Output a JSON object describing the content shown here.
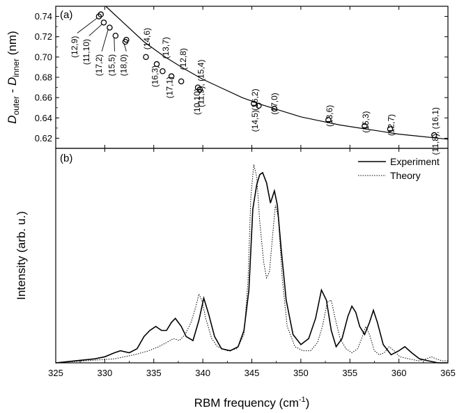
{
  "chart_data": [
    {
      "type": "scatter",
      "panel_label": "(a)",
      "ylabel_parts": [
        {
          "text": "D",
          "style": "italic"
        },
        {
          "text": "outer",
          "style": "sub"
        },
        {
          "text": " - ",
          "style": "normal"
        },
        {
          "text": "D",
          "style": "italic"
        },
        {
          "text": "inner",
          "style": "sub"
        },
        {
          "text": " (nm)",
          "style": "normal"
        }
      ],
      "xlim": [
        325,
        365
      ],
      "ylim": [
        0.61,
        0.75
      ],
      "yticks": [
        0.62,
        0.64,
        0.66,
        0.68,
        0.7,
        0.72,
        0.74
      ],
      "ytick_labels": [
        "0.62",
        "0.64",
        "0.66",
        "0.68",
        "0.70",
        "0.72",
        "0.74"
      ],
      "fit_curve": {
        "x": [
          330.1,
          332,
          334,
          336,
          338,
          340,
          342,
          344,
          346,
          348,
          350,
          352,
          354,
          356,
          358,
          360,
          362,
          365
        ],
        "y": [
          0.75,
          0.733,
          0.715,
          0.701,
          0.689,
          0.678,
          0.669,
          0.66,
          0.653,
          0.647,
          0.641,
          0.637,
          0.633,
          0.63,
          0.627,
          0.624,
          0.622,
          0.619
        ]
      },
      "points": [
        {
          "x": 329.4,
          "y": 0.74
        },
        {
          "x": 329.6,
          "y": 0.742
        },
        {
          "x": 329.9,
          "y": 0.734
        },
        {
          "x": 330.5,
          "y": 0.729
        },
        {
          "x": 331.1,
          "y": 0.721
        },
        {
          "x": 332.1,
          "y": 0.715
        },
        {
          "x": 332.2,
          "y": 0.717
        },
        {
          "x": 334.2,
          "y": 0.7
        },
        {
          "x": 335.3,
          "y": 0.693
        },
        {
          "x": 335.9,
          "y": 0.686
        },
        {
          "x": 336.8,
          "y": 0.681
        },
        {
          "x": 337.8,
          "y": 0.676
        },
        {
          "x": 339.5,
          "y": 0.67
        },
        {
          "x": 339.7,
          "y": 0.668
        },
        {
          "x": 345.2,
          "y": 0.654
        },
        {
          "x": 345.7,
          "y": 0.652
        },
        {
          "x": 347.3,
          "y": 0.649
        },
        {
          "x": 352.8,
          "y": 0.638
        },
        {
          "x": 356.5,
          "y": 0.632
        },
        {
          "x": 359.1,
          "y": 0.629
        },
        {
          "x": 363.6,
          "y": 0.623
        }
      ],
      "annotations": [
        {
          "text": "(12,9)",
          "x": 327.2,
          "y": 0.71,
          "rotate": -90,
          "leader": {
            "x": 329.4,
            "y": 0.74
          }
        },
        {
          "text": "(11,10)",
          "x": 328.4,
          "y": 0.705,
          "rotate": -90,
          "leader": {
            "x": 329.9,
            "y": 0.734
          }
        },
        {
          "text": "(17,2)",
          "x": 329.7,
          "y": 0.692,
          "rotate": -90,
          "leader": {
            "x": 330.5,
            "y": 0.729
          }
        },
        {
          "text": "(15,5)",
          "x": 331.0,
          "y": 0.692,
          "rotate": -90,
          "leader": {
            "x": 331.1,
            "y": 0.721
          }
        },
        {
          "text": "(18,0)",
          "x": 332.2,
          "y": 0.692,
          "rotate": -90,
          "leader": {
            "x": 332.1,
            "y": 0.715
          }
        },
        {
          "text": "(14,6)",
          "x": 334.6,
          "y": 0.718,
          "rotate": -90
        },
        {
          "text": "(16,3)",
          "x": 335.4,
          "y": 0.681,
          "rotate": -90
        },
        {
          "text": "(13,7)",
          "x": 336.5,
          "y": 0.709,
          "rotate": -90
        },
        {
          "text": "(17,1)",
          "x": 336.9,
          "y": 0.67,
          "rotate": -90
        },
        {
          "text": "(12,8)",
          "x": 338.3,
          "y": 0.698,
          "rotate": -90
        },
        {
          "text": "(10,10)",
          "x": 339.7,
          "y": 0.656,
          "rotate": -90
        },
        {
          "text": "(11,9), (15,4)",
          "x": 340.1,
          "y": 0.674,
          "rotate": -90
        },
        {
          "text": "(16,2)",
          "x": 345.6,
          "y": 0.658,
          "rotate": -90
        },
        {
          "text": "(14,5)",
          "x": 345.6,
          "y": 0.637,
          "rotate": -90
        },
        {
          "text": "(17,0)",
          "x": 347.6,
          "y": 0.654,
          "rotate": -90
        },
        {
          "text": "(13,6)",
          "x": 353.2,
          "y": 0.642,
          "rotate": -90
        },
        {
          "text": "(15,3)",
          "x": 356.9,
          "y": 0.636,
          "rotate": -90
        },
        {
          "text": "(12,7)",
          "x": 359.5,
          "y": 0.633,
          "rotate": -90
        },
        {
          "text": "(11,8), (16,1)",
          "x": 364.0,
          "y": 0.627,
          "rotate": -90
        }
      ]
    },
    {
      "type": "line",
      "panel_label": "(b)",
      "xlabel": "RBM frequency (cm",
      "xlabel_sup": "-1",
      "xlabel_end": ")",
      "ylabel": "Intensity (arb. u.)",
      "xlim": [
        325,
        365
      ],
      "ylim": [
        0,
        1.06
      ],
      "xticks": [
        325,
        330,
        335,
        340,
        345,
        350,
        355,
        360,
        365
      ],
      "xtick_labels": [
        "325",
        "330",
        "335",
        "340",
        "345",
        "350",
        "355",
        "360",
        "365"
      ],
      "legend_position": "top-right",
      "series": [
        {
          "name": "Experiment",
          "line_style": "solid",
          "x": [
            325,
            327,
            329,
            330,
            331,
            331.6,
            332.5,
            333.3,
            334,
            334.6,
            335.2,
            335.8,
            336.3,
            336.8,
            337.2,
            337.8,
            338.3,
            339,
            339.6,
            340.1,
            340.6,
            341.2,
            341.9,
            342.8,
            343.6,
            344.2,
            344.7,
            345.1,
            345.5,
            345.8,
            346.1,
            346.5,
            346.9,
            347.3,
            347.6,
            348,
            348.5,
            349.2,
            350,
            350.8,
            351.5,
            352.1,
            352.6,
            353.1,
            353.6,
            354.2,
            354.8,
            355.2,
            355.6,
            356,
            356.5,
            357,
            357.4,
            357.8,
            358.4,
            359.2,
            360,
            360.6,
            361.3,
            362.1,
            363,
            364,
            365
          ],
          "y": [
            0.0,
            0.01,
            0.02,
            0.03,
            0.05,
            0.06,
            0.05,
            0.07,
            0.13,
            0.16,
            0.18,
            0.16,
            0.16,
            0.2,
            0.22,
            0.18,
            0.13,
            0.11,
            0.21,
            0.32,
            0.24,
            0.13,
            0.07,
            0.06,
            0.08,
            0.16,
            0.36,
            0.76,
            0.88,
            0.93,
            0.94,
            0.89,
            0.79,
            0.85,
            0.78,
            0.56,
            0.31,
            0.14,
            0.09,
            0.12,
            0.22,
            0.36,
            0.31,
            0.16,
            0.08,
            0.12,
            0.23,
            0.28,
            0.25,
            0.18,
            0.14,
            0.2,
            0.26,
            0.2,
            0.09,
            0.04,
            0.06,
            0.08,
            0.05,
            0.02,
            0.01,
            0.0,
            0.0
          ]
        },
        {
          "name": "Theory",
          "line_style": "dotted",
          "x": [
            325,
            328,
            331,
            333,
            334.5,
            335.5,
            336.3,
            337,
            337.6,
            338.2,
            338.8,
            339.3,
            339.6,
            339.9,
            340.3,
            340.9,
            341.5,
            342.5,
            343.5,
            344.2,
            344.6,
            344.9,
            345.2,
            345.5,
            345.8,
            346.2,
            346.5,
            346.8,
            347.1,
            347.4,
            347.7,
            348.1,
            348.6,
            349.4,
            350.2,
            351,
            351.7,
            352.2,
            352.7,
            353.1,
            353.5,
            354,
            354.6,
            355.2,
            355.8,
            356.2,
            356.6,
            357,
            357.5,
            358,
            358.5,
            359,
            359.5,
            360.1,
            361,
            362,
            362.8,
            363.3,
            363.8,
            364.4,
            365
          ],
          "y": [
            0.0,
            0.01,
            0.02,
            0.04,
            0.06,
            0.08,
            0.1,
            0.12,
            0.11,
            0.14,
            0.2,
            0.28,
            0.34,
            0.31,
            0.22,
            0.12,
            0.08,
            0.06,
            0.07,
            0.14,
            0.4,
            0.82,
            0.98,
            0.92,
            0.7,
            0.5,
            0.42,
            0.45,
            0.62,
            0.78,
            0.72,
            0.42,
            0.18,
            0.08,
            0.06,
            0.06,
            0.1,
            0.18,
            0.3,
            0.31,
            0.22,
            0.12,
            0.07,
            0.05,
            0.07,
            0.12,
            0.18,
            0.14,
            0.06,
            0.04,
            0.05,
            0.08,
            0.06,
            0.03,
            0.02,
            0.01,
            0.02,
            0.03,
            0.02,
            0.01,
            0.01
          ]
        }
      ]
    }
  ]
}
